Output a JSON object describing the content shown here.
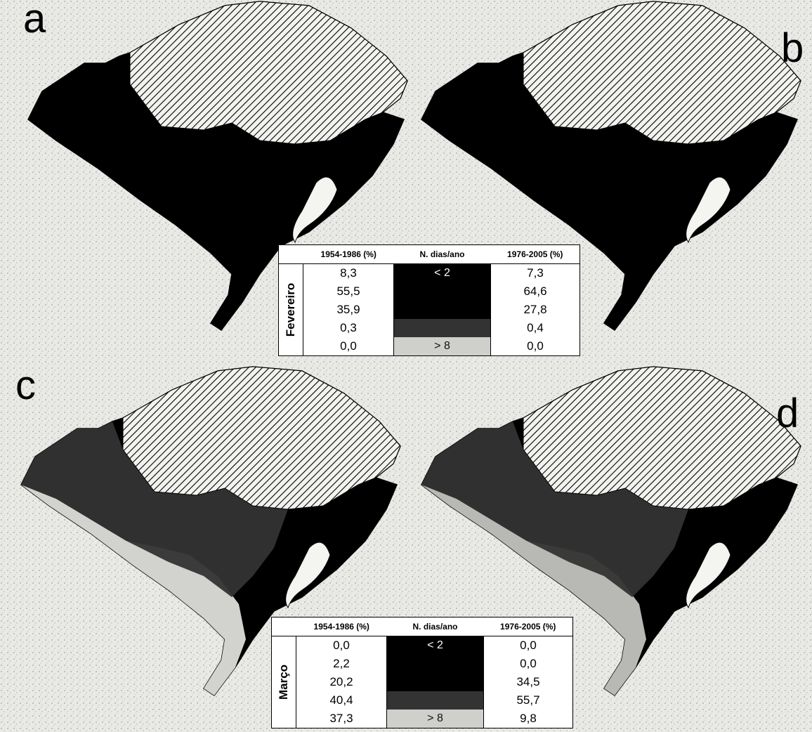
{
  "panels": [
    {
      "letter": "a",
      "colors": [
        "#000000",
        "#000000",
        "#000000",
        "#000000"
      ]
    },
    {
      "letter": "b",
      "colors": [
        "#000000",
        "#000000",
        "#000000",
        "#000000"
      ]
    },
    {
      "letter": "c",
      "colors": [
        "#d2d2cf",
        "#333333",
        "#000000",
        "#000000"
      ]
    },
    {
      "letter": "d",
      "colors": [
        "#b8b8b5",
        "#333333",
        "#000000",
        "#000000"
      ]
    }
  ],
  "legends": [
    {
      "month": "Fevereiro",
      "header_left": "1954-1986 (%)",
      "header_mid": "N. dias/ano",
      "header_right": "1976-2005 (%)",
      "rows": [
        {
          "left": "8,3",
          "class": "< 2",
          "color": "#000000",
          "right": "7,3"
        },
        {
          "left": "55,5",
          "class": "",
          "color": "#000000",
          "right": "64,6"
        },
        {
          "left": "35,9",
          "class": "",
          "color": "#000000",
          "right": "27,8"
        },
        {
          "left": "0,3",
          "class": "",
          "color": "#333333",
          "right": "0,4"
        },
        {
          "left": "0,0",
          "class": "> 8",
          "color": "#cfcfcc",
          "right": "0,0"
        }
      ]
    },
    {
      "month": "Março",
      "header_left": "1954-1986 (%)",
      "header_mid": "N. dias/ano",
      "header_right": "1976-2005 (%)",
      "rows": [
        {
          "left": "0,0",
          "class": "< 2",
          "color": "#000000",
          "right": "0,0"
        },
        {
          "left": "2,2",
          "class": "",
          "color": "#000000",
          "right": "0,0"
        },
        {
          "left": "20,2",
          "class": "",
          "color": "#000000",
          "right": "34,5"
        },
        {
          "left": "40,4",
          "class": "",
          "color": "#333333",
          "right": "55,7"
        },
        {
          "left": "37,3",
          "class": "> 8",
          "color": "#cfcfcc",
          "right": "9,8"
        }
      ]
    }
  ]
}
